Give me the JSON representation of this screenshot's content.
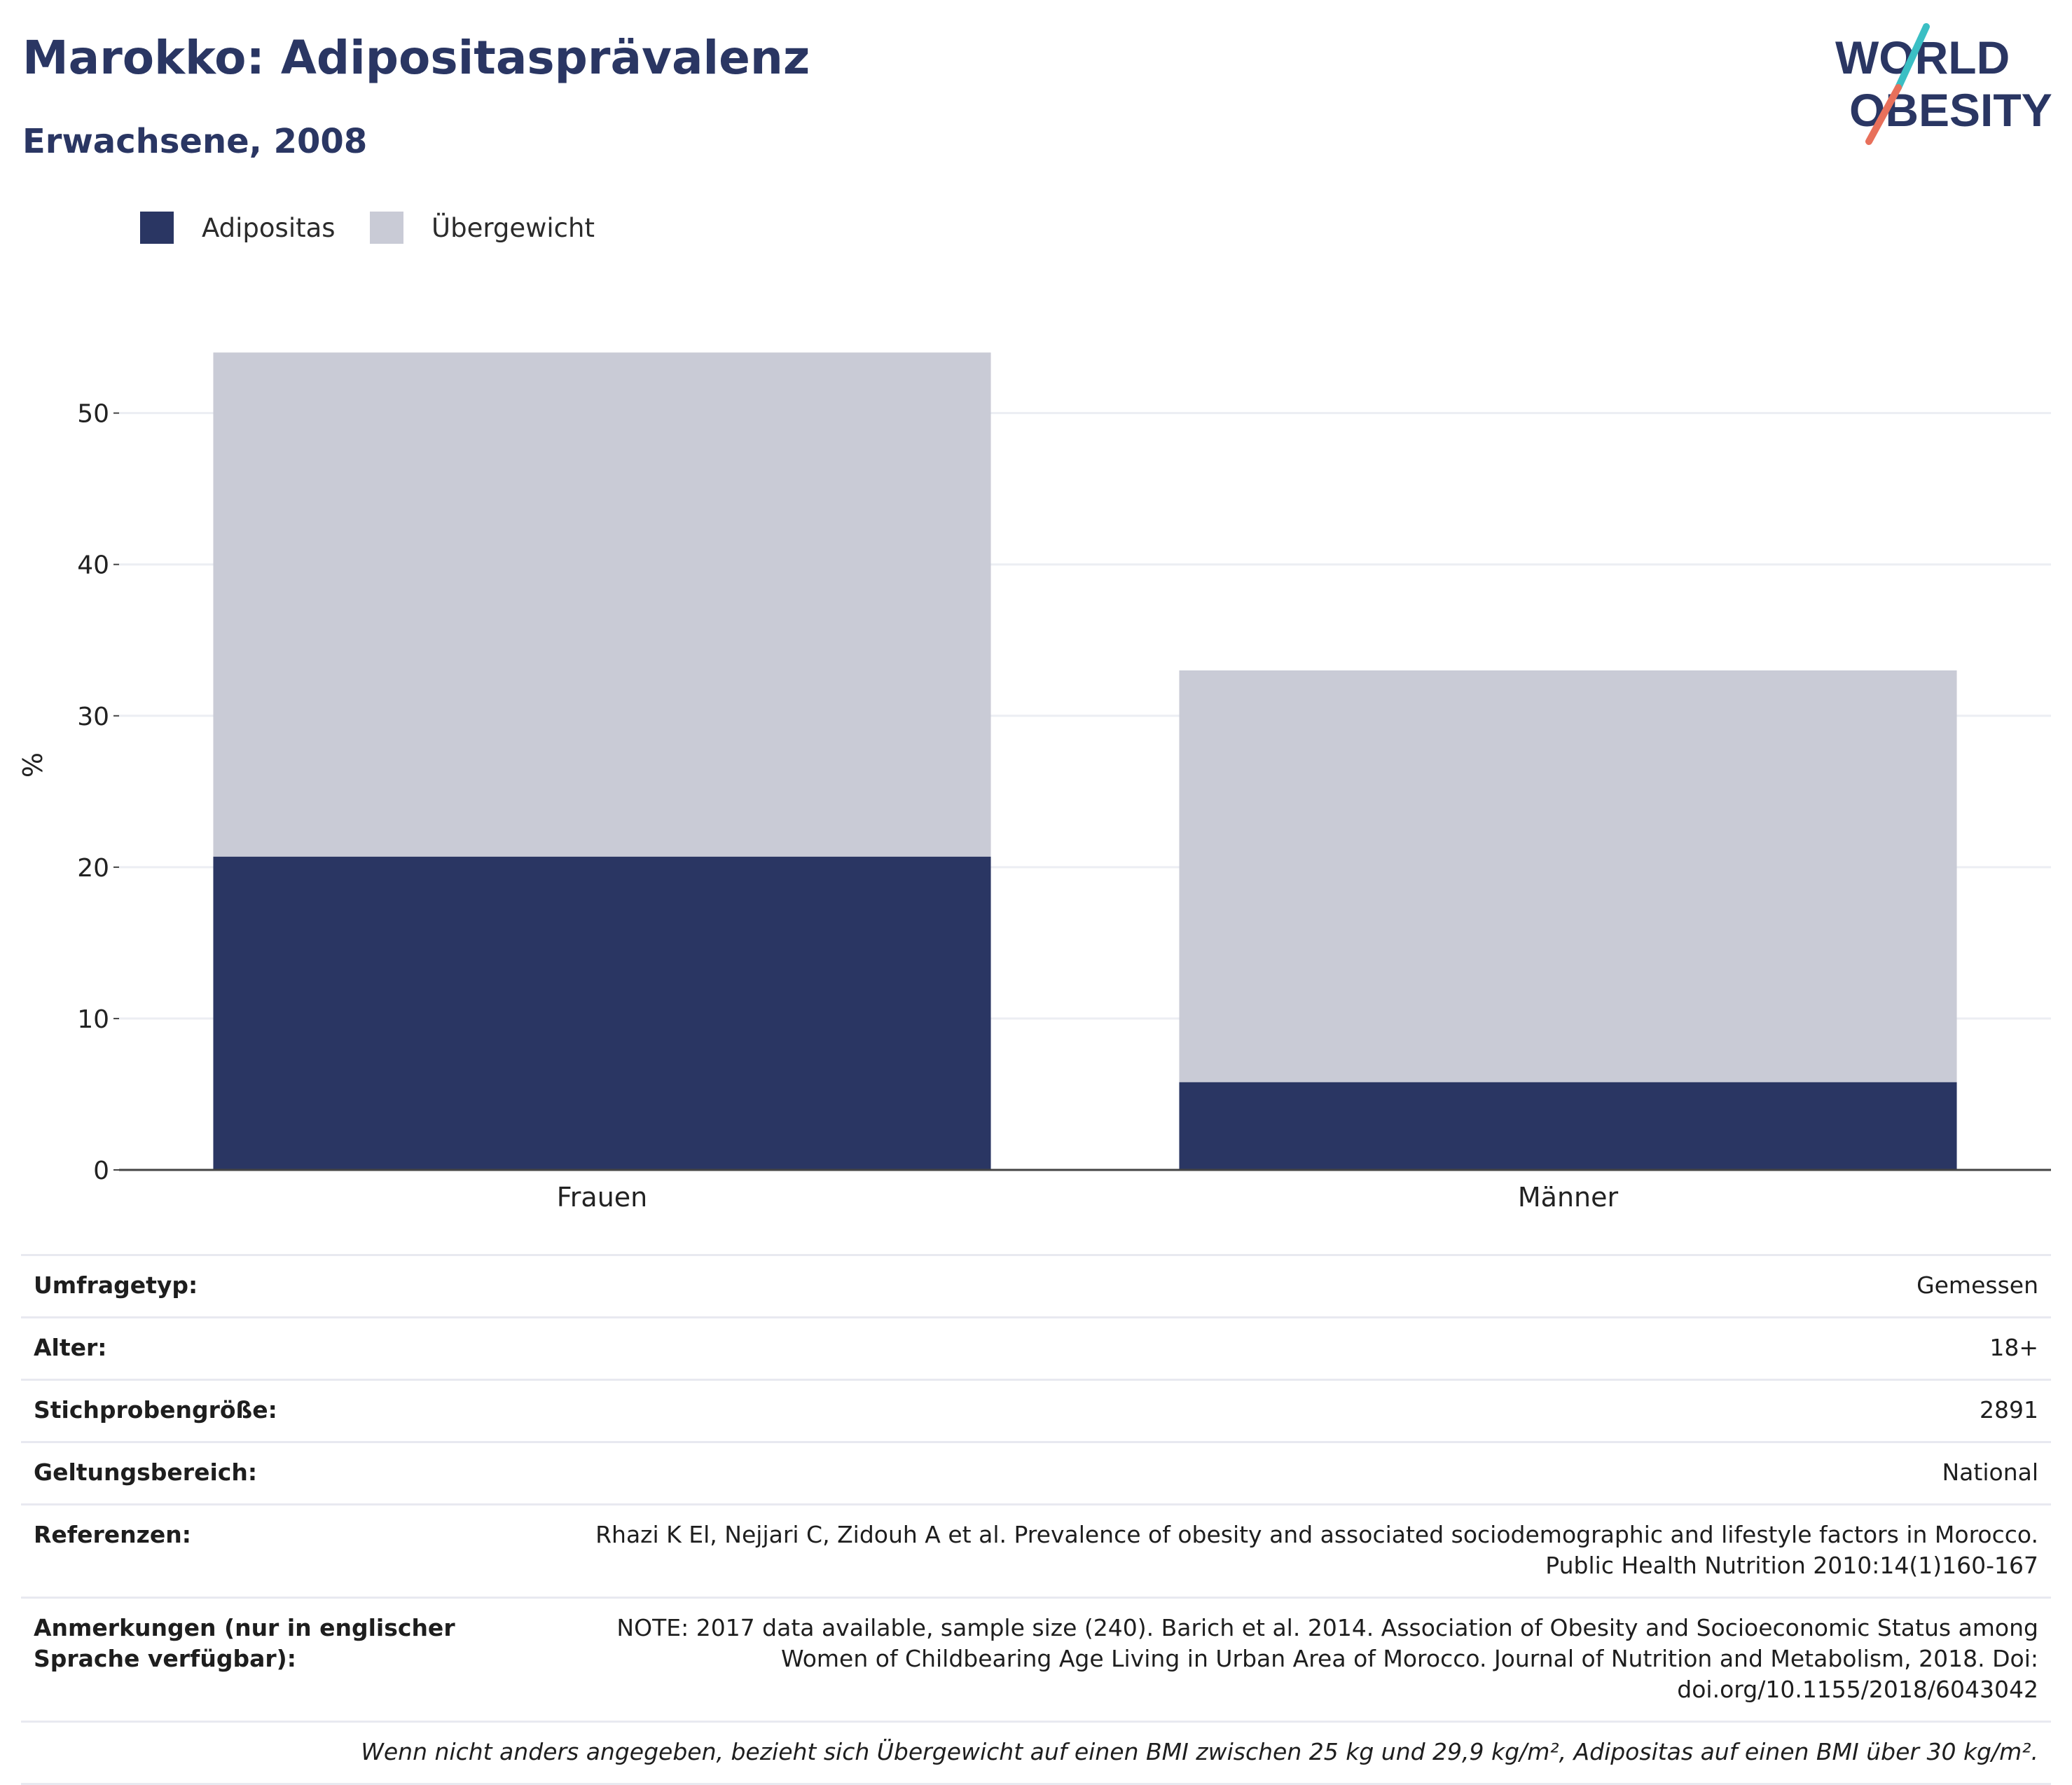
{
  "header": {
    "title": "Marokko: Adipositasprävalenz",
    "subtitle": "Erwachsene, 2008"
  },
  "logo": {
    "line1": "WORLD",
    "line2": "OBESITY",
    "colors": {
      "text": "#2a3663",
      "slash_top": "#3bbfc4",
      "slash_bottom": "#e8705b"
    }
  },
  "legend": {
    "items": [
      {
        "label": "Adipositas",
        "color": "#2a3663"
      },
      {
        "label": "Übergewicht",
        "color": "#c9cbd6"
      }
    ]
  },
  "chart_data": {
    "type": "bar",
    "stacked": true,
    "categories": [
      "Frauen",
      "Männer"
    ],
    "series": [
      {
        "name": "Adipositas",
        "color": "#2a3663",
        "values": [
          20.7,
          5.8
        ]
      },
      {
        "name": "Übergewicht",
        "color": "#c9cbd6",
        "values": [
          33.3,
          27.2
        ]
      }
    ],
    "ylabel": "%",
    "ylim": [
      0,
      56
    ],
    "yticks": [
      0,
      10,
      20,
      30,
      40,
      50
    ],
    "grid": true,
    "legend_position": "top-left"
  },
  "info": {
    "rows": [
      {
        "label": "Umfragetyp:",
        "value": "Gemessen"
      },
      {
        "label": "Alter:",
        "value": "18+"
      },
      {
        "label": "Stichprobengröße:",
        "value": "2891"
      },
      {
        "label": "Geltungsbereich:",
        "value": "National"
      },
      {
        "label": "Referenzen:",
        "value": "Rhazi K El, Nejjari C, Zidouh A et al. Prevalence of obesity and associated sociodemographic and lifestyle factors in Morocco. Public Health Nutrition 2010:14(1)160-167"
      },
      {
        "label": "Anmerkungen (nur in englischer Sprache verfügbar):",
        "value": "NOTE: 2017 data available, sample size (240). Barich et al. 2014. Association of Obesity and Socioeconomic Status among Women of Childbearing Age Living in Urban Area of Morocco. Journal of Nutrition and Metabolism, 2018. Doi: doi.org/10.1155/2018/6043042"
      }
    ],
    "footnote": "Wenn nicht anders angegeben, bezieht sich Übergewicht auf einen BMI zwischen 25 kg und 29,9 kg/m², Adipositas auf einen BMI über 30 kg/m²."
  }
}
